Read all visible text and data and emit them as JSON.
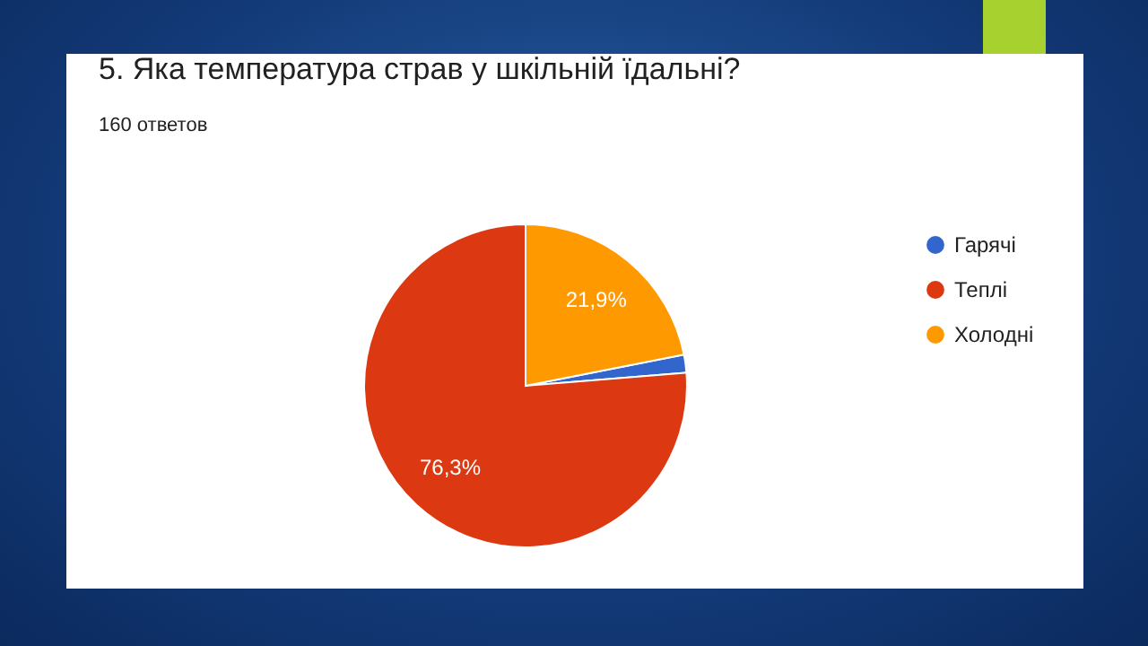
{
  "chart_data": {
    "type": "pie",
    "title": "5. Яка температура страв у шкільній їдальні?",
    "subtitle": "160 ответов",
    "categories": [
      "Гарячі",
      "Теплі",
      "Холодні"
    ],
    "values": [
      1.8,
      76.3,
      21.9
    ],
    "colors": [
      "#3366cc",
      "#dc3912",
      "#ff9900"
    ],
    "value_labels": [
      null,
      "76,3%",
      "21,9%"
    ],
    "legend": "top right"
  }
}
